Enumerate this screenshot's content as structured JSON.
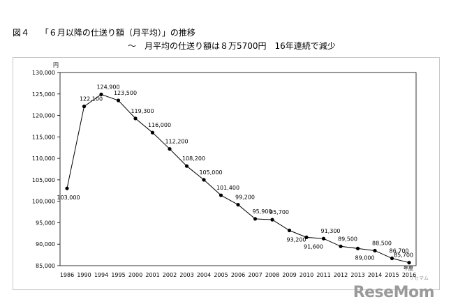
{
  "chart_data": {
    "type": "line",
    "figure_label": "図４",
    "title": "「６月以降の仕送り額（月平均）」の推移",
    "subtitle": "～　月平均の仕送り額は８万5700円　16年連続で減少",
    "ylabel": "円",
    "xlabel": "年度",
    "ylim": [
      85000,
      130000
    ],
    "yticks": [
      85000,
      90000,
      95000,
      100000,
      105000,
      110000,
      115000,
      120000,
      125000,
      130000
    ],
    "ytick_labels": [
      "85,000",
      "90,000",
      "95,000",
      "100,000",
      "105,000",
      "110,000",
      "115,000",
      "120,000",
      "125,000",
      "130,000"
    ],
    "categories": [
      "1986",
      "1990",
      "1994",
      "1995",
      "2000",
      "2001",
      "2002",
      "2003",
      "2004",
      "2005",
      "2006",
      "2007",
      "2008",
      "2009",
      "2010",
      "2011",
      "2012",
      "2013",
      "2014",
      "2015",
      "2016"
    ],
    "values": [
      103000,
      122100,
      124900,
      123500,
      119300,
      116000,
      112200,
      108200,
      105000,
      101400,
      99200,
      95900,
      95700,
      93200,
      91600,
      91300,
      89500,
      89000,
      88500,
      86700,
      85700
    ],
    "value_labels": [
      "103,000",
      "122,100",
      "124,900",
      "123,500",
      "119,300",
      "116,000",
      "112,200",
      "108,200",
      "105,000",
      "101,400",
      "99,200",
      "95,900",
      "95,700",
      "93,200",
      "91,600",
      "91,300",
      "89,500",
      "89,000",
      "88,500",
      "86,700",
      "85,700"
    ],
    "label_positions": [
      "below",
      "above",
      "above",
      "above",
      "above",
      "above",
      "above",
      "above",
      "above",
      "above",
      "above",
      "above",
      "above",
      "below",
      "below",
      "above",
      "above",
      "below",
      "above",
      "above",
      "above"
    ],
    "grid": false,
    "line_color": "#000000"
  },
  "watermark": {
    "brand": "ReseMom",
    "sub": "リセマム"
  }
}
